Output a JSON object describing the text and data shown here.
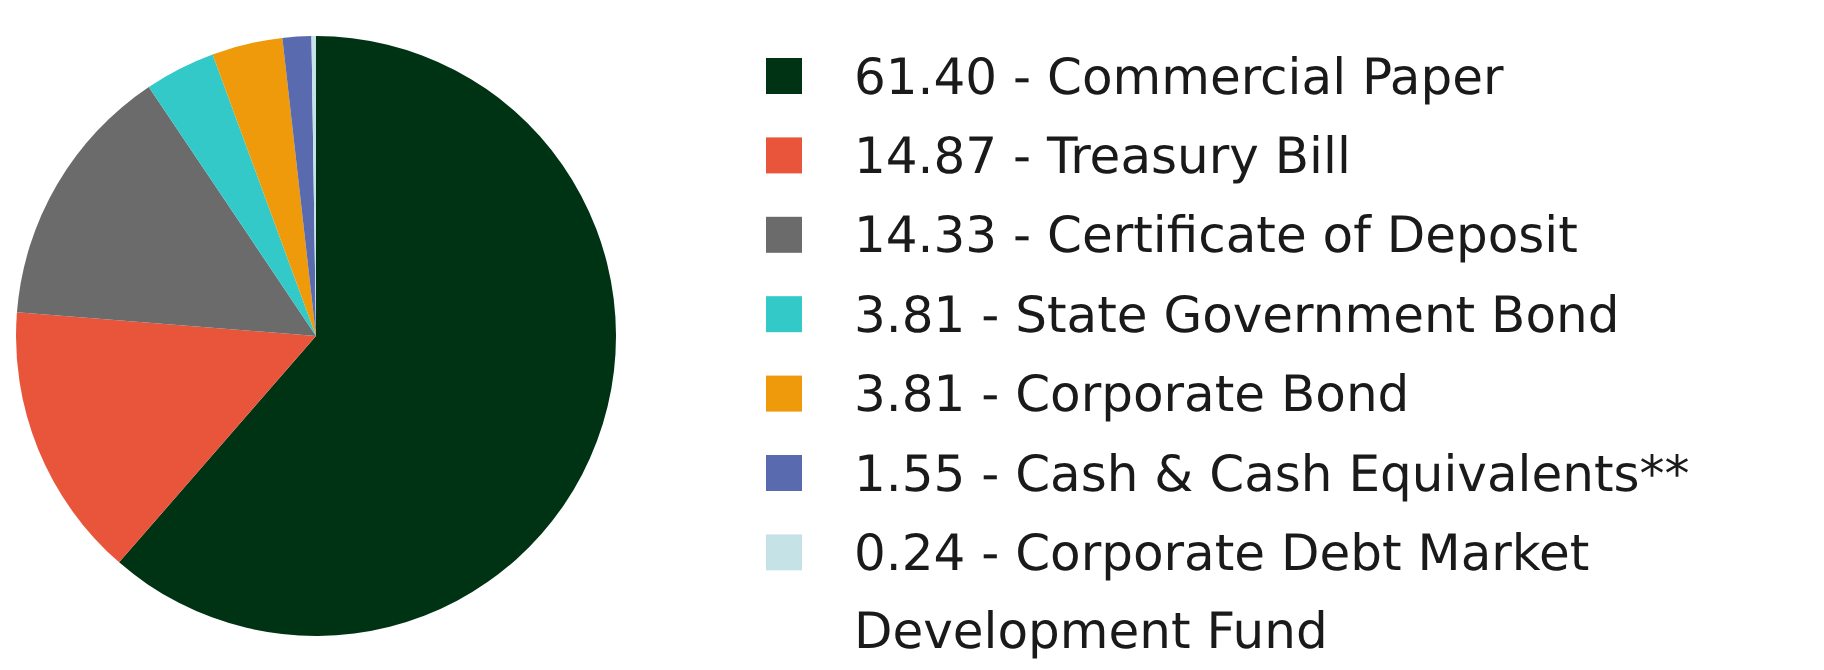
{
  "chart_data": {
    "type": "pie",
    "categories": [
      "Commercial Paper",
      "Treasury Bill",
      "Certificate of Deposit",
      "State Government Bond",
      "Corporate Bond",
      "Cash & Cash Equivalents**",
      "Corporate Debt Market Development Fund"
    ],
    "values": [
      61.4,
      14.87,
      14.33,
      3.81,
      3.81,
      1.55,
      0.24
    ],
    "value_labels": [
      "61.40",
      "14.87",
      "14.33",
      "3.81",
      "3.81",
      "1.55",
      "0.24"
    ],
    "colors": [
      "#003314",
      "#e8553b",
      "#6b6b6b",
      "#33c9c9",
      "#ee9a0b",
      "#5a6aaf",
      "#c5e3e6"
    ],
    "legend": "right"
  }
}
